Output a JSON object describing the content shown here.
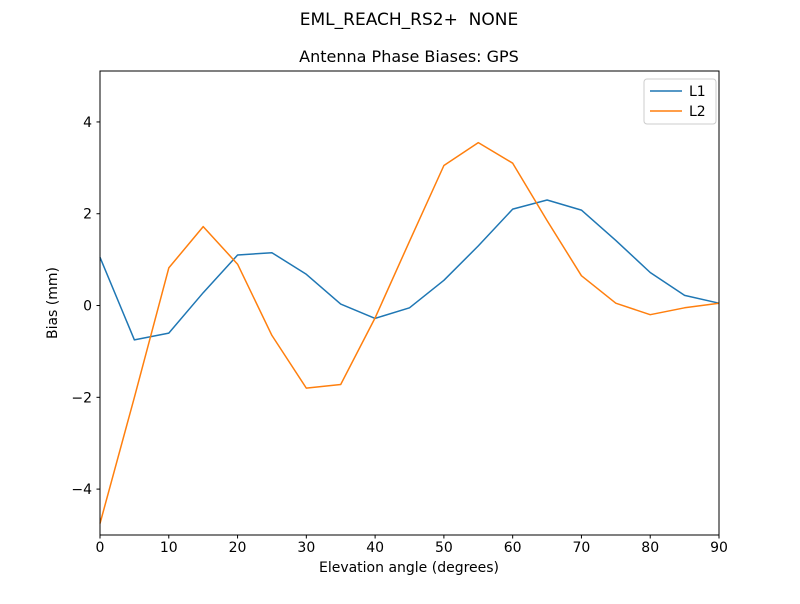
{
  "figure": {
    "background": "#ffffff",
    "text_color": "#000000",
    "frame_color": "#000000"
  },
  "chart_data": {
    "type": "line",
    "title": "EML_REACH_RS2+  NONE",
    "subtitle": "Antenna Phase Biases: GPS",
    "xlabel": "Elevation angle (degrees)",
    "ylabel": "Bias (mm)",
    "x": [
      0,
      5,
      10,
      15,
      20,
      25,
      30,
      35,
      40,
      45,
      50,
      55,
      60,
      65,
      70,
      75,
      80,
      85,
      90
    ],
    "series": [
      {
        "name": "L1",
        "color": "#1f77b4",
        "values": [
          1.05,
          -0.75,
          -0.6,
          0.28,
          1.1,
          1.15,
          0.68,
          0.03,
          -0.28,
          -0.05,
          0.55,
          1.3,
          2.1,
          2.3,
          2.08,
          1.42,
          0.72,
          0.22,
          0.05
        ]
      },
      {
        "name": "L2",
        "color": "#ff7f0e",
        "values": [
          -4.75,
          -2.0,
          0.82,
          1.72,
          0.9,
          -0.65,
          -1.8,
          -1.72,
          -0.27,
          1.4,
          3.05,
          3.55,
          3.1,
          1.85,
          0.65,
          0.05,
          -0.2,
          -0.05,
          0.05
        ]
      }
    ],
    "xlim": [
      0,
      90
    ],
    "ylim": [
      -5.0,
      5.11
    ],
    "xticks": {
      "values": [
        0,
        10,
        20,
        30,
        40,
        50,
        60,
        70,
        80,
        90
      ],
      "labels": [
        "0",
        "10",
        "20",
        "30",
        "40",
        "50",
        "60",
        "70",
        "80",
        "90"
      ]
    },
    "yticks": {
      "values": [
        -4,
        -2,
        0,
        2,
        4
      ],
      "labels": [
        "−4",
        "−2",
        "0",
        "2",
        "4"
      ]
    },
    "grid": false,
    "legend": {
      "position": "upper right",
      "entries": [
        "L1",
        "L2"
      ]
    }
  }
}
